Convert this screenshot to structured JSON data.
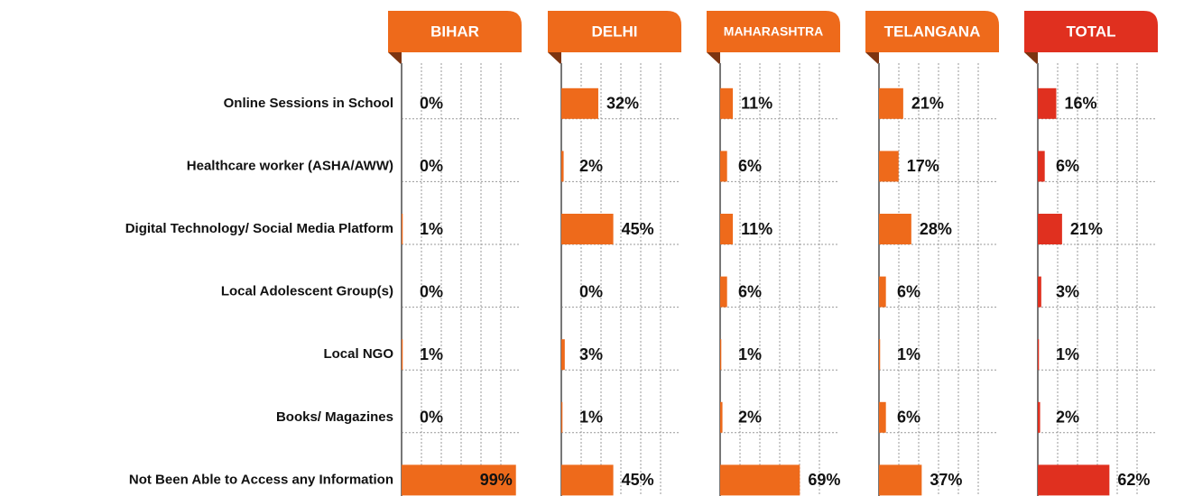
{
  "chart_data": {
    "type": "bar",
    "categories": [
      "Online Sessions in School",
      "Healthcare worker (ASHA/AWW)",
      "Digital Technology/ Social Media Platform",
      "Local Adolescent Group(s)",
      "Local NGO",
      "Books/ Magazines",
      "Not Been Able to Access any Information"
    ],
    "xlim": [
      0,
      100
    ],
    "grid": true,
    "series": [
      {
        "name": "BIHAR",
        "color": "#ee6a1b",
        "values": [
          0,
          0,
          1,
          0,
          1,
          0,
          99
        ],
        "value_labels": [
          "0%",
          "0%",
          "1%",
          "0%",
          "1%",
          "0%",
          "99%"
        ]
      },
      {
        "name": "DELHI",
        "color": "#ee6a1b",
        "values": [
          32,
          2,
          45,
          0,
          3,
          1,
          45
        ],
        "value_labels": [
          "32%",
          "2%",
          "45%",
          "0%",
          "3%",
          "1%",
          "45%"
        ]
      },
      {
        "name": "MAHARASHTRA",
        "color": "#ee6a1b",
        "values": [
          11,
          6,
          11,
          6,
          1,
          2,
          69
        ],
        "value_labels": [
          "11%",
          "6%",
          "11%",
          "6%",
          "1%",
          "2%",
          "69%"
        ]
      },
      {
        "name": "TELANGANA",
        "color": "#ee6a1b",
        "values": [
          21,
          17,
          28,
          6,
          1,
          6,
          37
        ],
        "value_labels": [
          "21%",
          "17%",
          "28%",
          "6%",
          "1%",
          "6%",
          "37%"
        ]
      },
      {
        "name": "TOTAL",
        "color": "#e0301f",
        "values": [
          16,
          6,
          21,
          3,
          1,
          2,
          62
        ],
        "value_labels": [
          "16%",
          "6%",
          "21%",
          "3%",
          "1%",
          "2%",
          "62%"
        ]
      }
    ]
  }
}
